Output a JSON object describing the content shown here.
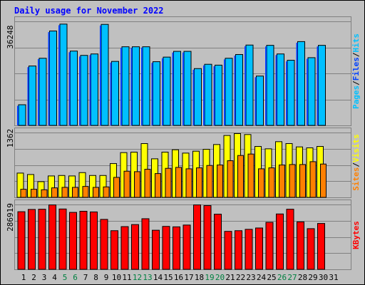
{
  "chart_data": {
    "type": "bar",
    "title": "Daily usage for November 2022",
    "title_color": "#0000ff",
    "categories": [
      "1",
      "2",
      "3",
      "4",
      "5",
      "6",
      "7",
      "8",
      "9",
      "10",
      "11",
      "12",
      "13",
      "14",
      "15",
      "16",
      "17",
      "18",
      "19",
      "20",
      "21",
      "22",
      "23",
      "24",
      "25",
      "26",
      "27",
      "28",
      "29",
      "30",
      "31"
    ],
    "weekend_days": [
      "5",
      "6",
      "12",
      "13",
      "19",
      "20",
      "26",
      "27"
    ],
    "weekday_label_color": "#000000",
    "weekend_label_color": "#008040",
    "panels": [
      {
        "id": "hits-files-pages",
        "max_label": "36248",
        "ylim": [
          0,
          36248
        ],
        "legend": [
          {
            "label": "Pages",
            "color": "#00c0ff"
          },
          {
            "label": "Files",
            "color": "#0040ff"
          },
          {
            "label": "Hits",
            "color": "#00c0ff"
          }
        ],
        "series": [
          {
            "name": "Hits",
            "color": "#00c0ff",
            "values": [
              7200,
              20700,
              23400,
              32900,
              35300,
              25900,
              24400,
              24900,
              35200,
              22300,
              27400,
              27400,
              27400,
              22200,
              23800,
              25800,
              25800,
              19800,
              21300,
              21000,
              23400,
              24700,
              28000,
              17200,
              27900,
              24900,
              22700,
              29200,
              23600,
              27900
            ]
          },
          {
            "name": "Files",
            "color": "#0040ff",
            "values": [
              6800,
              20300,
              23100,
              32500,
              34900,
              25500,
              24000,
              24500,
              34800,
              21900,
              27000,
              27000,
              27100,
              21800,
              23400,
              25400,
              25400,
              19400,
              20900,
              20600,
              23000,
              24300,
              27600,
              16800,
              27500,
              24500,
              22300,
              28800,
              23200,
              27500
            ]
          }
        ]
      },
      {
        "id": "visits-sites",
        "max_label": "1362",
        "ylim": [
          0,
          1362
        ],
        "legend": [
          {
            "label": "Sites",
            "color": "#ff8000"
          },
          {
            "label": "Visits",
            "color": "#ffff00"
          }
        ],
        "series": [
          {
            "name": "Visits",
            "color": "#ffff00",
            "values": [
              510,
              480,
              330,
              450,
              460,
              450,
              520,
              460,
              460,
              710,
              940,
              950,
              1130,
              810,
              950,
              1000,
              930,
              970,
              1010,
              1110,
              1300,
              1340,
              1320,
              1070,
              1020,
              1170,
              1130,
              1060,
              1040,
              1070
            ]
          },
          {
            "name": "Sites",
            "color": "#ff8000",
            "values": [
              170,
              170,
              160,
              200,
              210,
              210,
              230,
              210,
              220,
              420,
              550,
              540,
              590,
              500,
              610,
              630,
              600,
              620,
              670,
              680,
              770,
              880,
              910,
              600,
              620,
              680,
              690,
              690,
              750,
              700
            ]
          }
        ]
      },
      {
        "id": "kbytes",
        "max_label": "286919",
        "ylim": [
          0,
          286919
        ],
        "legend": [
          {
            "label": "KBytes",
            "color": "#ff0000"
          }
        ],
        "series": [
          {
            "name": "KBytes",
            "color": "#ff0000",
            "values": [
              255000,
              265000,
              266000,
              285000,
              267000,
              252000,
              257000,
              254000,
              221000,
              171000,
              189000,
              198000,
              224000,
              173000,
              190000,
              188000,
              196000,
              285000,
              282000,
              244000,
              168000,
              171000,
              177000,
              183000,
              208000,
              245000,
              266000,
              210000,
              180000,
              203000
            ]
          }
        ]
      }
    ]
  }
}
